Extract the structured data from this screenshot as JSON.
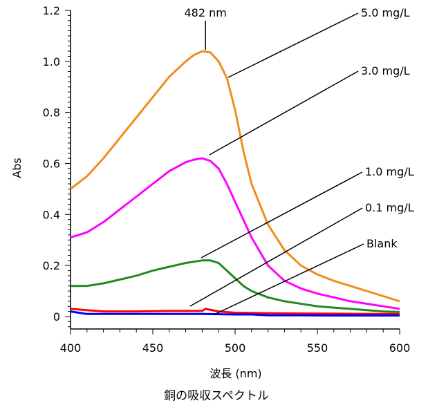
{
  "chart_data": {
    "type": "line",
    "title": "銅の吸収スペクトル",
    "xlabel": "波長 (nm)",
    "ylabel": "Abs",
    "xlim": [
      400,
      600
    ],
    "ylim": [
      -0.05,
      1.2
    ],
    "x_ticks": [
      "400",
      "450",
      "500",
      "550",
      "600"
    ],
    "y_ticks": [
      "0",
      "0.2",
      "0.4",
      "0.6",
      "0.8",
      "1.0",
      "1.2"
    ],
    "peak_annotation": {
      "label": "482 nm",
      "x": 482,
      "y": 1.04
    },
    "series": [
      {
        "name": "5.0 mg/L",
        "color": "#f28c1c",
        "x": [
          400,
          410,
          420,
          430,
          440,
          450,
          460,
          470,
          475,
          480,
          485,
          490,
          495,
          500,
          505,
          510,
          520,
          530,
          540,
          550,
          560,
          570,
          580,
          590,
          600
        ],
        "y": [
          0.5,
          0.55,
          0.62,
          0.7,
          0.78,
          0.86,
          0.94,
          1.0,
          1.025,
          1.04,
          1.035,
          1.0,
          0.935,
          0.81,
          0.65,
          0.52,
          0.36,
          0.26,
          0.2,
          0.165,
          0.14,
          0.12,
          0.1,
          0.08,
          0.06
        ]
      },
      {
        "name": "3.0 mg/L",
        "color": "#ff00ff",
        "x": [
          400,
          410,
          420,
          430,
          440,
          450,
          460,
          470,
          475,
          480,
          485,
          490,
          495,
          500,
          505,
          510,
          520,
          530,
          540,
          550,
          560,
          570,
          580,
          590,
          600
        ],
        "y": [
          0.31,
          0.33,
          0.37,
          0.42,
          0.47,
          0.52,
          0.57,
          0.605,
          0.615,
          0.62,
          0.61,
          0.58,
          0.52,
          0.45,
          0.38,
          0.31,
          0.2,
          0.14,
          0.11,
          0.09,
          0.075,
          0.06,
          0.05,
          0.04,
          0.03
        ]
      },
      {
        "name": "1.0 mg/L",
        "color": "#1f8a1f",
        "x": [
          400,
          410,
          420,
          430,
          440,
          450,
          460,
          470,
          480,
          485,
          490,
          495,
          500,
          505,
          510,
          520,
          530,
          540,
          550,
          560,
          570,
          580,
          590,
          600
        ],
        "y": [
          0.12,
          0.12,
          0.13,
          0.145,
          0.16,
          0.18,
          0.195,
          0.21,
          0.22,
          0.22,
          0.21,
          0.18,
          0.15,
          0.12,
          0.1,
          0.075,
          0.06,
          0.05,
          0.04,
          0.035,
          0.03,
          0.025,
          0.02,
          0.018
        ]
      },
      {
        "name": "0.1 mg/L",
        "color": "#ff0000",
        "x": [
          400,
          410,
          420,
          440,
          460,
          480,
          482,
          490,
          500,
          520,
          540,
          560,
          580,
          600
        ],
        "y": [
          0.03,
          0.025,
          0.02,
          0.02,
          0.022,
          0.022,
          0.03,
          0.02,
          0.015,
          0.013,
          0.012,
          0.011,
          0.01,
          0.01
        ]
      },
      {
        "name": "Blank",
        "color": "#0000ff",
        "x": [
          400,
          410,
          420,
          440,
          460,
          480,
          500,
          510,
          520,
          540,
          560,
          580,
          600
        ],
        "y": [
          0.02,
          0.01,
          0.01,
          0.01,
          0.01,
          0.01,
          0.008,
          0.008,
          0.005,
          0.005,
          0.004,
          0.004,
          0.004
        ]
      }
    ]
  }
}
